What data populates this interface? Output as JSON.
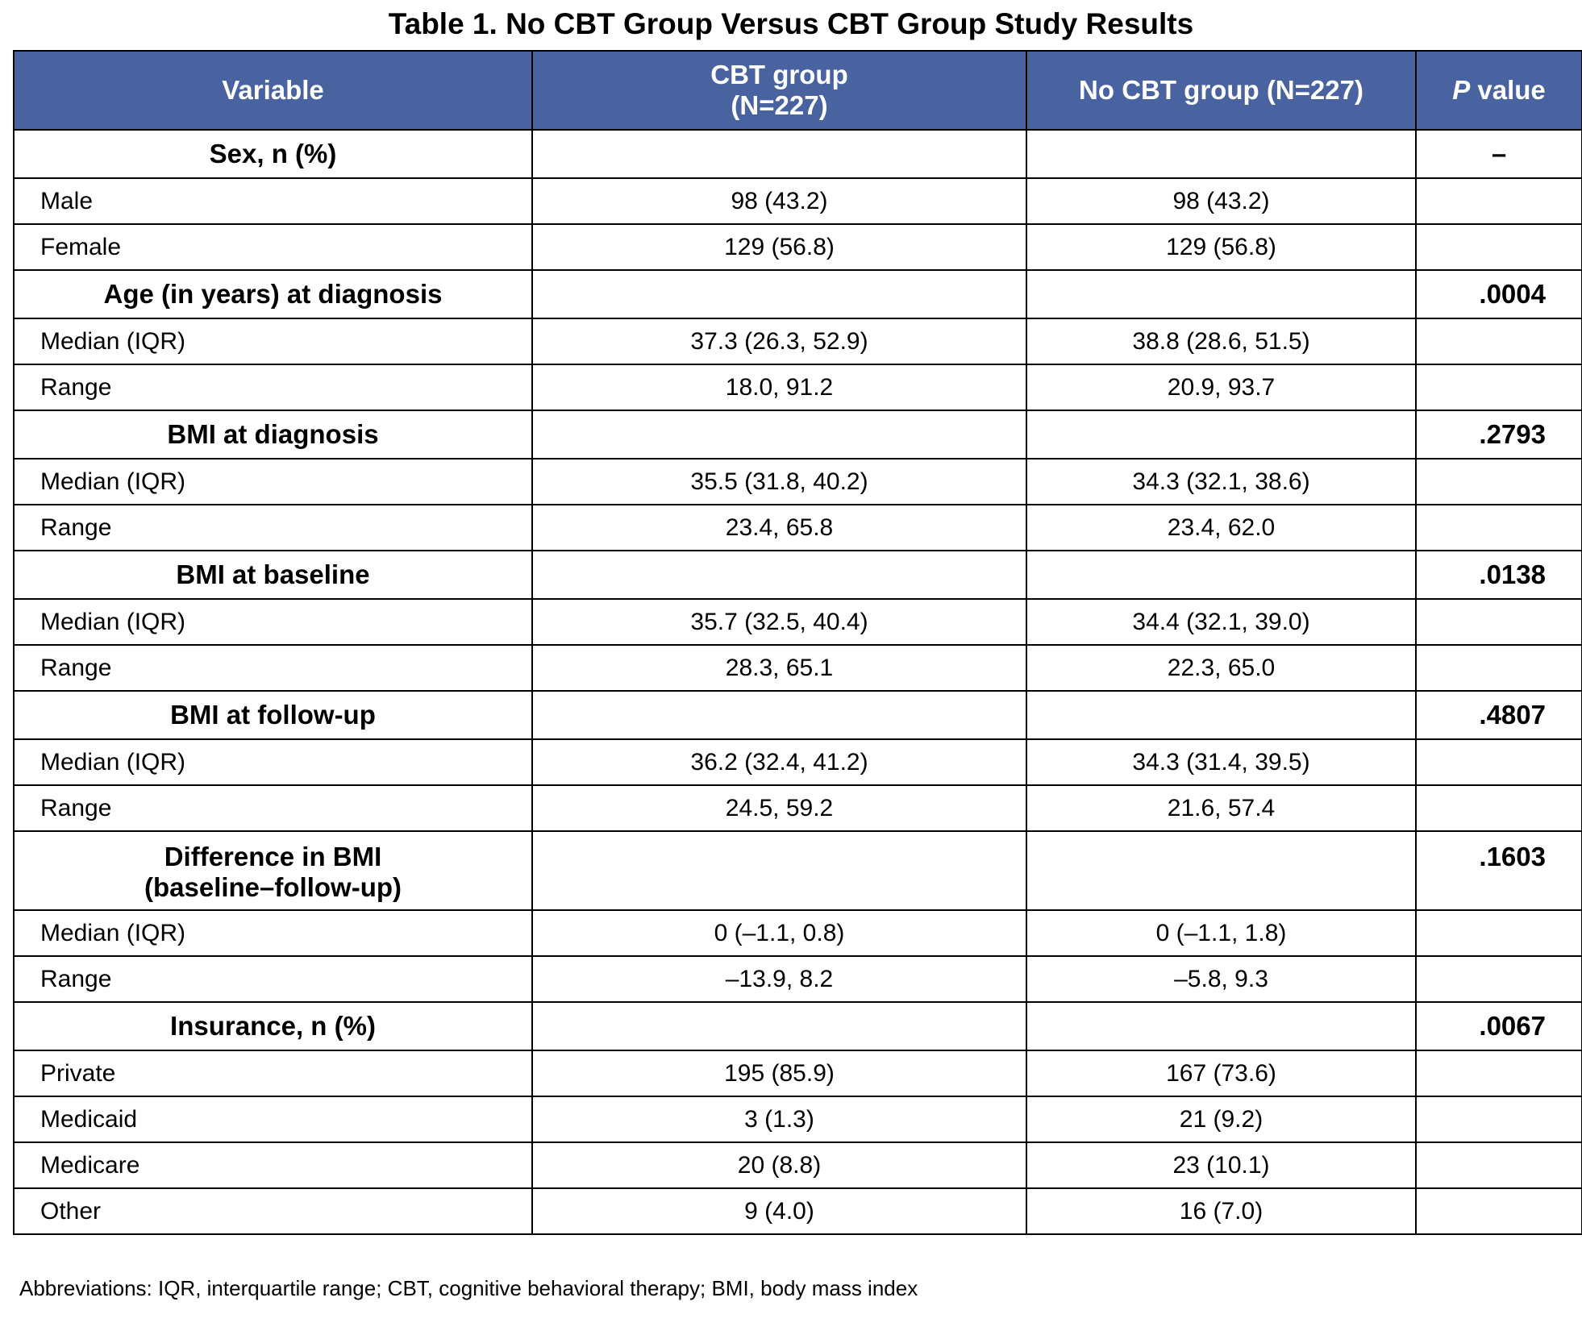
{
  "title": "Table 1. No CBT Group Versus CBT Group Study Results",
  "header": {
    "variable": "Variable",
    "cbt_line1": "CBT group",
    "cbt_line2": "(N=227)",
    "no_cbt": "No CBT group (N=227)",
    "p_italic": "P",
    "p_rest": " value"
  },
  "sections": [
    {
      "label": "Sex, n (%)",
      "p": "–",
      "rows": [
        {
          "label": "Male",
          "cbt": "98 (43.2)",
          "no_cbt": "98 (43.2)"
        },
        {
          "label": "Female",
          "cbt": "129 (56.8)",
          "no_cbt": "129 (56.8)"
        }
      ]
    },
    {
      "label": "Age (in years) at diagnosis",
      "p": ".0004",
      "rows": [
        {
          "label": "Median (IQR)",
          "cbt": "37.3 (26.3, 52.9)",
          "no_cbt": "38.8 (28.6, 51.5)"
        },
        {
          "label": "Range",
          "cbt": "18.0, 91.2",
          "no_cbt": "20.9, 93.7"
        }
      ]
    },
    {
      "label": "BMI at diagnosis",
      "p": ".2793",
      "rows": [
        {
          "label": "Median (IQR)",
          "cbt": "35.5 (31.8, 40.2)",
          "no_cbt": "34.3 (32.1, 38.6)"
        },
        {
          "label": "Range",
          "cbt": "23.4, 65.8",
          "no_cbt": "23.4, 62.0"
        }
      ]
    },
    {
      "label": "BMI at baseline",
      "p": ".0138",
      "rows": [
        {
          "label": "Median (IQR)",
          "cbt": "35.7 (32.5, 40.4)",
          "no_cbt": "34.4 (32.1, 39.0)"
        },
        {
          "label": "Range",
          "cbt": "28.3, 65.1",
          "no_cbt": "22.3, 65.0"
        }
      ]
    },
    {
      "label": "BMI at follow-up",
      "p": ".4807",
      "rows": [
        {
          "label": "Median (IQR)",
          "cbt": "36.2 (32.4, 41.2)",
          "no_cbt": "34.3 (31.4, 39.5)"
        },
        {
          "label": "Range",
          "cbt": "24.5, 59.2",
          "no_cbt": "21.6, 57.4"
        }
      ]
    },
    {
      "label_line1": "Difference in BMI",
      "label_line2": "(baseline–follow-up)",
      "p": ".1603",
      "rows": [
        {
          "label": "Median (IQR)",
          "cbt": "0 (–1.1, 0.8)",
          "no_cbt": "0 (–1.1, 1.8)"
        },
        {
          "label": "Range",
          "cbt": "–13.9, 8.2",
          "no_cbt": "–5.8, 9.3"
        }
      ]
    },
    {
      "label": "Insurance, n (%)",
      "p": ".0067",
      "rows": [
        {
          "label": "Private",
          "cbt": "195 (85.9)",
          "no_cbt": "167 (73.6)"
        },
        {
          "label": "Medicaid",
          "cbt": "3 (1.3)",
          "no_cbt": "21 (9.2)"
        },
        {
          "label": "Medicare",
          "cbt": "20 (8.8)",
          "no_cbt": "23 (10.1)"
        },
        {
          "label": "Other",
          "cbt": "9 (4.0)",
          "no_cbt": "16 (7.0)"
        }
      ]
    }
  ],
  "footnote": "Abbreviations: IQR, interquartile range; CBT, cognitive behavioral therapy; BMI, body mass index",
  "colors": {
    "header_bg": "#4863a0",
    "header_text": "#ffffff",
    "border": "#000000"
  }
}
